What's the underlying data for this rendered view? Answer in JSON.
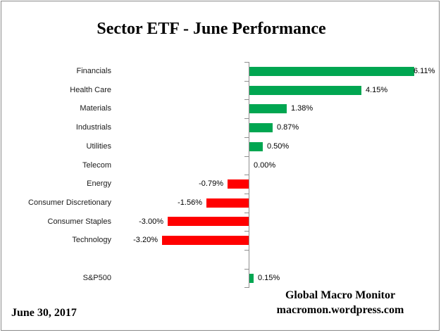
{
  "title": "Sector ETF - June Performance",
  "chart_data": {
    "type": "bar",
    "orientation": "horizontal",
    "title": "Sector ETF - June Performance",
    "categories": [
      "Financials",
      "Health Care",
      "Materials",
      "Industrials",
      "Utilities",
      "Telecom",
      "Energy",
      "Consumer Discretionary",
      "Consumer Staples",
      "Technology",
      "",
      "S&P500"
    ],
    "values": [
      6.11,
      4.15,
      1.38,
      0.87,
      0.5,
      0.0,
      -0.79,
      -1.56,
      -3.0,
      -3.2,
      null,
      0.15
    ],
    "value_labels": [
      "6.11%",
      "4.15%",
      "1.38%",
      "0.87%",
      "0.50%",
      "0.00%",
      "-0.79%",
      "-1.56%",
      "-3.00%",
      "-3.20%",
      "",
      "0.15%"
    ],
    "positive_color": "#00A651",
    "negative_color": "#FF0000",
    "axis_color": "#8f8f8f",
    "xlim": [
      -3.5,
      6.5
    ],
    "legend": false,
    "gridlines": false
  },
  "footer": {
    "date": "June 30, 2017",
    "attribution_line1": "Global Macro Monitor",
    "attribution_line2": "macromon.wordpress.com"
  }
}
